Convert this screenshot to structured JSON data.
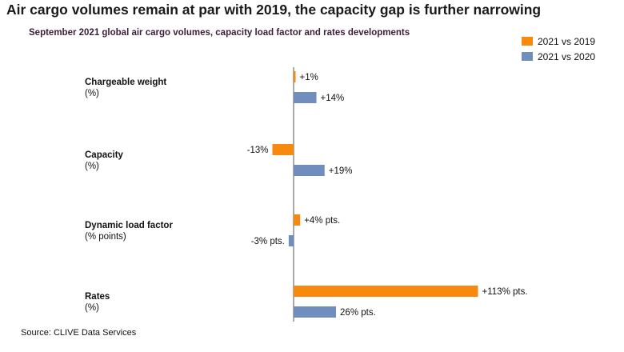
{
  "title": "Air cargo volumes remain at par with 2019, the capacity gap is further narrowing",
  "subtitle": "September 2021 global air cargo volumes, capacity load factor and rates developments",
  "source": "Source: CLIVE Data Services",
  "colors": {
    "series_2019": "#F78A0E",
    "series_2020": "#6F8EBD",
    "axis": "#555555"
  },
  "chart_data": {
    "type": "bar",
    "orientation": "horizontal",
    "title": "September 2021 global air cargo volumes, capacity load factor and rates developments",
    "categories": [
      {
        "name": "Chargeable weight",
        "unit": "(%)"
      },
      {
        "name": "Capacity",
        "unit": "(%)"
      },
      {
        "name": "Dynamic load factor",
        "unit": "(% points)"
      },
      {
        "name": "Rates",
        "unit": "(%)"
      }
    ],
    "series": [
      {
        "name": "2021 vs 2019",
        "values": [
          1,
          -13,
          4,
          113
        ],
        "labels": [
          "+1%",
          "-13%",
          "+4% pts.",
          "+113% pts."
        ]
      },
      {
        "name": "2021 vs 2020",
        "values": [
          14,
          19,
          -3,
          26
        ],
        "labels": [
          "+14%",
          "+19%",
          "-3% pts.",
          "26% pts."
        ]
      }
    ],
    "legend_position": "top-right",
    "grid": false
  }
}
